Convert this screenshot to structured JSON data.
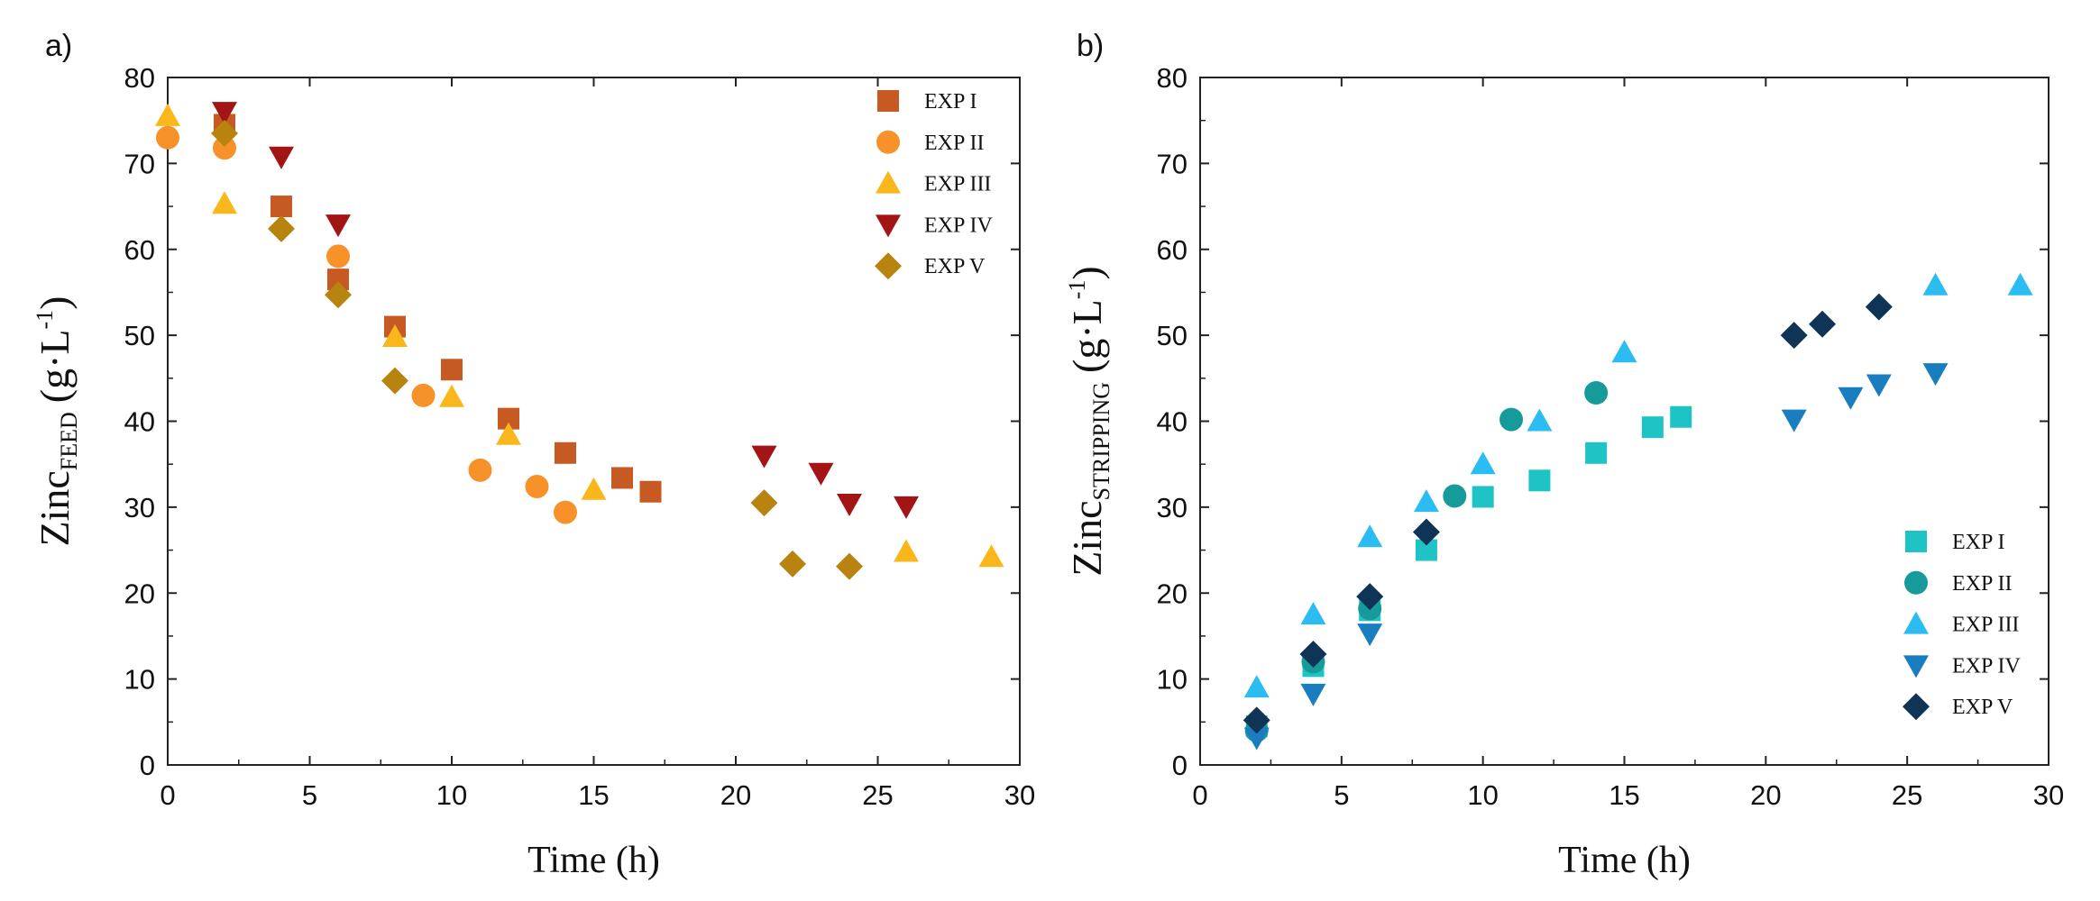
{
  "chart_data": [
    {
      "type": "scatter",
      "panel_label": "a)",
      "xlabel": "Time (h)",
      "ylabel_main": "Zinc",
      "ylabel_sub": "FEED",
      "ylabel_unit": "(g·L",
      "ylabel_sup": "-1",
      "ylabel_close": ")",
      "xlim": [
        0,
        30
      ],
      "ylim": [
        0,
        80
      ],
      "xticks": [
        0,
        5,
        10,
        15,
        20,
        25,
        30
      ],
      "yticks": [
        0,
        10,
        20,
        30,
        40,
        50,
        60,
        70,
        80
      ],
      "grid": false,
      "legend_position": "top-right",
      "series": [
        {
          "name": "EXP I",
          "marker": "square",
          "color": "#C65A22",
          "x": [
            2,
            4,
            6,
            8,
            10,
            12,
            14,
            16,
            17
          ],
          "y": [
            74.5,
            65,
            56.5,
            51,
            46,
            40.3,
            36.3,
            33.4,
            31.8
          ]
        },
        {
          "name": "EXP II",
          "marker": "circle",
          "color": "#F7922A",
          "x": [
            0,
            2,
            6,
            9,
            11,
            13,
            14
          ],
          "y": [
            73,
            71.8,
            59.2,
            43,
            34.3,
            32.4,
            29.4
          ]
        },
        {
          "name": "EXP III",
          "marker": "triangle-up",
          "color": "#F9B71C",
          "x": [
            0,
            2,
            8,
            10,
            12,
            15,
            26,
            29
          ],
          "y": [
            75.5,
            65.3,
            49.8,
            42.8,
            38.4,
            32,
            24.8,
            24.2
          ]
        },
        {
          "name": "EXP IV",
          "marker": "triangle-down",
          "color": "#A31414",
          "x": [
            2,
            4,
            6,
            21,
            23,
            24,
            26
          ],
          "y": [
            76,
            70.8,
            62.9,
            36,
            34,
            30.4,
            30.1
          ]
        },
        {
          "name": "EXP V",
          "marker": "diamond",
          "color": "#B8830E",
          "x": [
            2,
            4,
            6,
            8,
            21,
            22,
            24
          ],
          "y": [
            73.5,
            62.4,
            54.7,
            44.7,
            30.5,
            23.4,
            23.1
          ]
        }
      ]
    },
    {
      "type": "scatter",
      "panel_label": "b)",
      "xlabel": "Time (h)",
      "ylabel_main": "Zinc",
      "ylabel_sub": "STRIPPING",
      "ylabel_unit": "(g·L",
      "ylabel_sup": "-1",
      "ylabel_close": ")",
      "xlim": [
        0,
        30
      ],
      "ylim": [
        0,
        80
      ],
      "xticks": [
        0,
        5,
        10,
        15,
        20,
        25,
        30
      ],
      "yticks": [
        0,
        10,
        20,
        30,
        40,
        50,
        60,
        70,
        80
      ],
      "grid": false,
      "legend_position": "bottom-right",
      "series": [
        {
          "name": "EXP I",
          "marker": "square",
          "color": "#1EC3C6",
          "x": [
            2,
            4,
            6,
            8,
            10,
            12,
            14,
            16,
            17
          ],
          "y": [
            4.5,
            11.5,
            18,
            25,
            31.2,
            33.1,
            36.3,
            39.3,
            40.5
          ]
        },
        {
          "name": "EXP II",
          "marker": "circle",
          "color": "#169A9A",
          "x": [
            2,
            4,
            6,
            9,
            11,
            14
          ],
          "y": [
            4,
            12,
            18.2,
            31.3,
            40.2,
            43.3
          ]
        },
        {
          "name": "EXP III",
          "marker": "triangle-up",
          "color": "#2BBDF2",
          "x": [
            2,
            4,
            6,
            8,
            10,
            12,
            15,
            26,
            29
          ],
          "y": [
            9,
            17.5,
            26.5,
            30.6,
            35,
            40,
            48,
            55.8,
            55.8
          ]
        },
        {
          "name": "EXP IV",
          "marker": "triangle-down",
          "color": "#1A7DC0",
          "x": [
            2,
            4,
            6,
            21,
            23,
            24,
            26
          ],
          "y": [
            3.2,
            8.3,
            15.3,
            40.2,
            42.8,
            44.3,
            45.6
          ]
        },
        {
          "name": "EXP V",
          "marker": "diamond",
          "color": "#0F3456",
          "x": [
            2,
            4,
            6,
            8,
            21,
            22,
            24
          ],
          "y": [
            5.2,
            12.9,
            19.6,
            27.1,
            50,
            51.3,
            53.3
          ]
        }
      ]
    }
  ]
}
